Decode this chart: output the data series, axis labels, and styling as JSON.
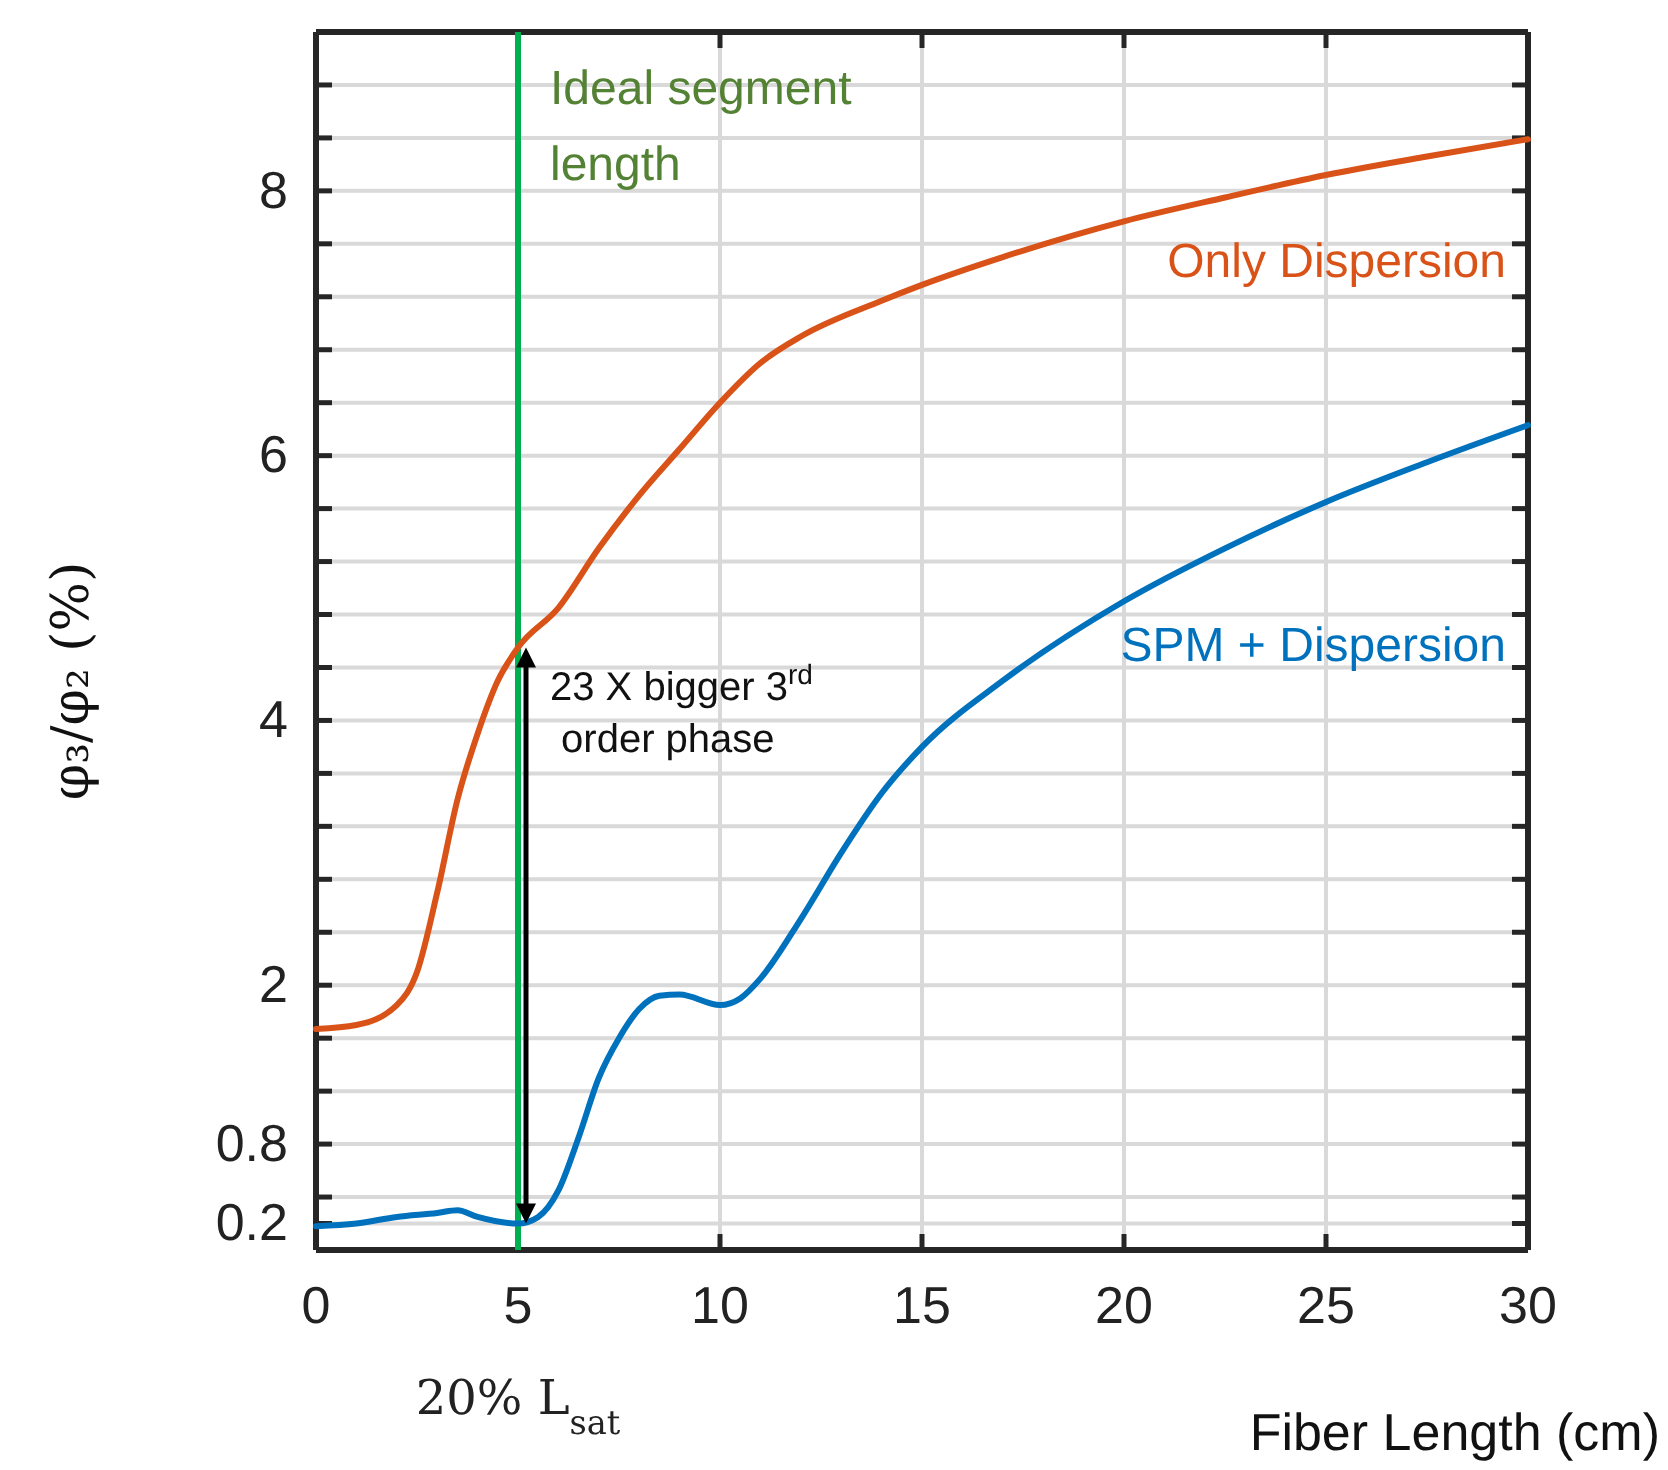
{
  "chart_data": {
    "type": "line",
    "xlabel": "Fiber Length (cm)",
    "ylabel": "φ₃/φ₂ (%)",
    "xlim": [
      0,
      30
    ],
    "xticks": [
      0,
      5,
      10,
      15,
      20,
      25,
      30
    ],
    "ylim": [
      0,
      9.2
    ],
    "yticks": [
      0.2,
      {
        "value": 0.4,
        "label": null
      },
      0.8,
      {
        "value": 1.2,
        "label": null
      },
      {
        "value": 1.6,
        "label": null
      },
      2,
      {
        "value": 2.4,
        "label": null
      },
      {
        "value": 2.8,
        "label": null
      },
      {
        "value": 3.2,
        "label": null
      },
      {
        "value": 3.6,
        "label": null
      },
      4,
      {
        "value": 4.4,
        "label": null
      },
      {
        "value": 4.8,
        "label": null
      },
      {
        "value": 5.2,
        "label": null
      },
      {
        "value": 5.6,
        "label": null
      },
      6,
      {
        "value": 6.4,
        "label": null
      },
      {
        "value": 6.8,
        "label": null
      },
      {
        "value": 7.2,
        "label": null
      },
      {
        "value": 7.6,
        "label": null
      },
      8,
      {
        "value": 8.4,
        "label": null
      },
      {
        "value": 8.8,
        "label": null
      }
    ],
    "grid": true,
    "series": [
      {
        "name": "Only Dispersion",
        "color": "#d95319",
        "x": [
          0,
          1,
          2,
          2.5,
          3,
          3.5,
          4,
          4.5,
          5,
          6,
          7,
          8,
          9,
          10,
          11,
          12,
          14,
          15,
          17,
          20,
          22.5,
          25,
          27.5,
          30
        ],
        "values": [
          1.67,
          1.7,
          1.85,
          2.1,
          2.7,
          3.4,
          3.9,
          4.3,
          4.55,
          4.85,
          5.3,
          5.7,
          6.05,
          6.4,
          6.7,
          6.9,
          7.17,
          7.29,
          7.5,
          7.77,
          7.95,
          8.12,
          8.26,
          8.39
        ]
      },
      {
        "name": "SPM + Dispersion",
        "color": "#0072bd",
        "x": [
          0,
          1,
          2,
          3,
          3.5,
          4,
          5,
          5.5,
          6,
          6.5,
          7,
          7.5,
          8,
          8.5,
          9,
          10,
          10.5,
          11,
          12,
          13,
          14,
          15,
          17,
          20,
          22.5,
          25,
          27.5,
          30
        ],
        "values": [
          0.18,
          0.2,
          0.25,
          0.28,
          0.3,
          0.25,
          0.2,
          0.25,
          0.45,
          0.85,
          1.3,
          1.6,
          1.82,
          1.92,
          1.93,
          1.85,
          1.9,
          2.05,
          2.5,
          3.0,
          3.45,
          3.8,
          4.3,
          4.9,
          5.3,
          5.65,
          5.95,
          6.23
        ]
      }
    ],
    "ref_lines": [
      {
        "axis": "x",
        "value": 5,
        "color": "#00b050"
      }
    ],
    "annotations": [
      "Ideal segment length",
      {
        "text": "23 X bigger 3$^{rd}$ order phase",
        "x": 5,
        "y": 4.55
      },
      "20% L$_{sat}$"
    ]
  }
}
